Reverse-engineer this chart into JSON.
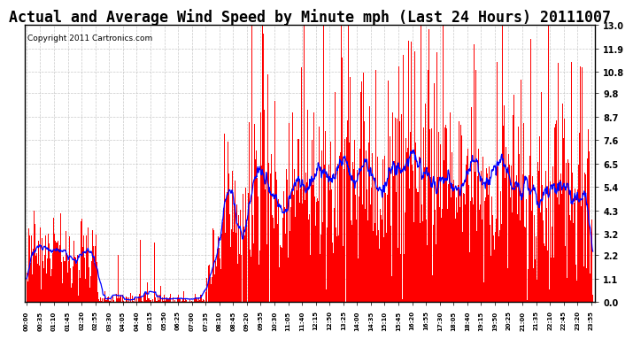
{
  "title": "Actual and Average Wind Speed by Minute mph (Last 24 Hours) 20111007",
  "copyright": "Copyright 2011 Cartronics.com",
  "yticks": [
    0.0,
    1.1,
    2.2,
    3.2,
    4.3,
    5.4,
    6.5,
    7.6,
    8.7,
    9.8,
    10.8,
    11.9,
    13.0
  ],
  "ymin": 0.0,
  "ymax": 13.0,
  "bar_color": "#FF0000",
  "line_color": "#0000FF",
  "bg_color": "#FFFFFF",
  "grid_color": "#BBBBBB",
  "title_fontsize": 12,
  "copyright_fontsize": 6.5,
  "n_minutes": 1440,
  "tick_step": 35,
  "avg_window": 30
}
